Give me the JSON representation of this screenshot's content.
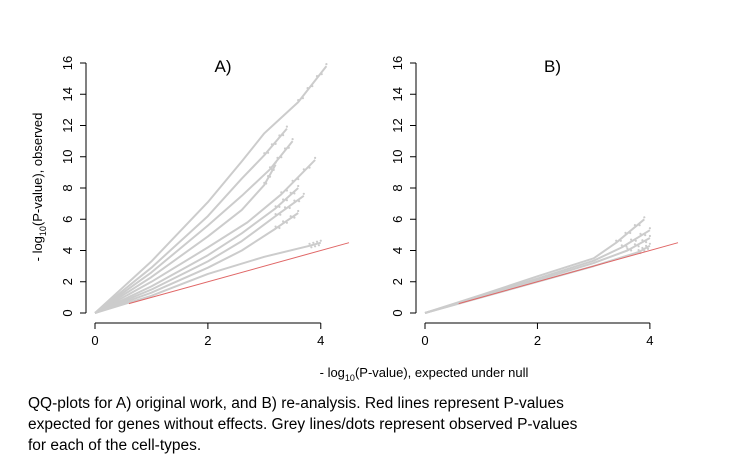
{
  "figure": {
    "ylabel_parts": [
      "- log",
      "10",
      "(P-value), observed"
    ],
    "xlabel_parts": [
      "- log",
      "10",
      "(P-value), expected under null"
    ],
    "caption_lines": [
      "QQ-plots for A) original work, and B) re-analysis. Red lines represent P-values",
      "expected for genes without effects. Grey lines/dots represent observed P-values",
      "for each of the cell-types."
    ]
  },
  "colors": {
    "observed": "#cccccc",
    "expected": "#e06666",
    "axis": "#000000"
  },
  "chart_data": [
    {
      "type": "scatter",
      "title": "A)",
      "xlim": [
        0,
        4.5
      ],
      "ylim": [
        0,
        16
      ],
      "x_ticks": [
        "0",
        "2",
        "4"
      ],
      "y_ticks": [
        "0",
        "2",
        "4",
        "6",
        "8",
        "10",
        "12",
        "14",
        "16"
      ],
      "grid": false,
      "series": [
        {
          "role": "observed",
          "style": "lines-and-dots",
          "color": "#cccccc",
          "values": [
            {
              "x": [
                0,
                1,
                2,
                3,
                3.8,
                4.0
              ],
              "y": [
                0,
                1.1,
                2.5,
                3.6,
                4.3,
                4.5
              ]
            },
            {
              "x": [
                0,
                1,
                2,
                2.6,
                3.2,
                3.6
              ],
              "y": [
                0,
                1.3,
                2.9,
                4.0,
                5.4,
                6.4
              ]
            },
            {
              "x": [
                0,
                1,
                2,
                2.6,
                3.2,
                3.7
              ],
              "y": [
                0,
                1.5,
                3.3,
                4.6,
                6.2,
                7.5
              ]
            },
            {
              "x": [
                0,
                1,
                2,
                2.6,
                3.2,
                3.6
              ],
              "y": [
                0,
                1.7,
                3.7,
                5.1,
                6.7,
                8.0
              ]
            },
            {
              "x": [
                0,
                1,
                2,
                2.7,
                3.3,
                3.9
              ],
              "y": [
                0,
                2.0,
                4.2,
                5.8,
                7.6,
                9.8
              ]
            },
            {
              "x": [
                0,
                1,
                2,
                2.6,
                3.0,
                3.2
              ],
              "y": [
                0,
                2.3,
                4.9,
                6.6,
                8.2,
                9.5
              ]
            },
            {
              "x": [
                0,
                1,
                2,
                2.6,
                3.1,
                3.5
              ],
              "y": [
                0,
                2.6,
                5.6,
                7.5,
                9.2,
                11.0
              ]
            },
            {
              "x": [
                0,
                1,
                2,
                2.6,
                3.0,
                3.4
              ],
              "y": [
                0,
                2.9,
                6.2,
                8.6,
                10.1,
                11.8
              ]
            },
            {
              "x": [
                0,
                1,
                2,
                2.6,
                3.0,
                3.6,
                4.1
              ],
              "y": [
                0,
                3.3,
                7.1,
                9.7,
                11.5,
                13.5,
                15.8
              ]
            }
          ]
        },
        {
          "role": "expected",
          "style": "line",
          "color": "#e06666",
          "values": [
            {
              "x": [
                0.6,
                4.5
              ],
              "y": [
                0.6,
                4.5
              ]
            }
          ]
        }
      ]
    },
    {
      "type": "scatter",
      "title": "B)",
      "xlim": [
        0,
        4.5
      ],
      "ylim": [
        0,
        16
      ],
      "x_ticks": [
        "0",
        "2",
        "4"
      ],
      "y_ticks": [
        "0",
        "2",
        "4",
        "6",
        "8",
        "10",
        "12",
        "14",
        "16"
      ],
      "grid": false,
      "series": [
        {
          "role": "observed",
          "style": "lines-and-dots",
          "color": "#cccccc",
          "values": [
            {
              "x": [
                0,
                1,
                2,
                3,
                3.8,
                4.0
              ],
              "y": [
                0,
                1.0,
                2.0,
                3.0,
                3.9,
                4.3
              ]
            },
            {
              "x": [
                0,
                1,
                2,
                3,
                3.6,
                4.0
              ],
              "y": [
                0,
                1.05,
                2.1,
                3.2,
                4.0,
                4.8
              ]
            },
            {
              "x": [
                0,
                1,
                2,
                3,
                3.5,
                4.0
              ],
              "y": [
                0,
                1.1,
                2.2,
                3.35,
                4.2,
                5.3
              ]
            },
            {
              "x": [
                0,
                1,
                2,
                3,
                3.4,
                3.9
              ],
              "y": [
                0,
                1.15,
                2.35,
                3.5,
                4.5,
                6.0
              ]
            }
          ]
        },
        {
          "role": "expected",
          "style": "line",
          "color": "#e06666",
          "values": [
            {
              "x": [
                0.6,
                4.5
              ],
              "y": [
                0.6,
                4.5
              ]
            }
          ]
        }
      ]
    }
  ]
}
